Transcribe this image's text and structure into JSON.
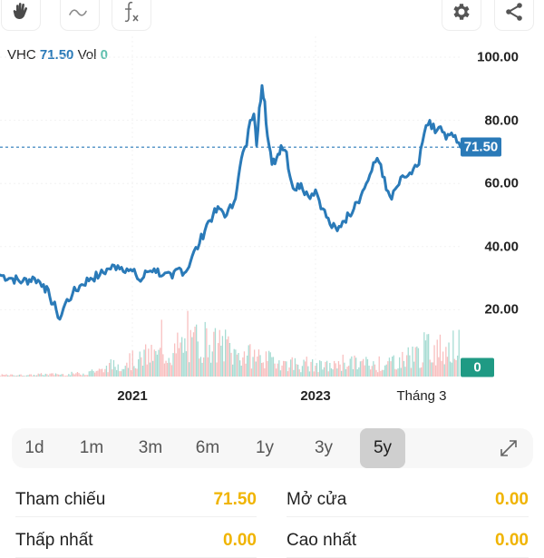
{
  "toolbar": {
    "left_tools": [
      {
        "name": "hand-icon",
        "label": "Pan"
      },
      {
        "name": "wave-icon",
        "label": "Drawing"
      },
      {
        "name": "function-icon",
        "label": "Indicators"
      }
    ],
    "right_tools": [
      {
        "name": "gear-icon",
        "label": "Settings"
      },
      {
        "name": "share-icon",
        "label": "Share"
      }
    ]
  },
  "legend": {
    "symbol": "VHC",
    "price": "71.50",
    "vol_label": "Vol",
    "vol_value": "0"
  },
  "colors": {
    "line": "#2a7ab8",
    "up_volume": "#5fbfae",
    "down_volume": "#f28b8b",
    "price_badge": "#2a7ab8",
    "vol_badge": "#1f9a84",
    "stat_value": "#f0b400"
  },
  "axis": {
    "y_labels": [
      "100.00",
      "80.00",
      "60.00",
      "40.00",
      "20.00"
    ],
    "x_labels": [
      {
        "text": "2021",
        "bold": true
      },
      {
        "text": "2023",
        "bold": true
      },
      {
        "text": "Tháng 3",
        "bold": false
      }
    ]
  },
  "badges": {
    "current_price": "71.50",
    "current_volume": "0"
  },
  "chart_data": {
    "type": "line",
    "title": "VHC",
    "xlabel": "",
    "ylabel": "",
    "ylim": [
      0,
      100
    ],
    "y_ticks": [
      20,
      40,
      60,
      80,
      100
    ],
    "x_tick_labels": [
      "2021",
      "2023",
      "Tháng 3"
    ],
    "grid": true,
    "reference_line": 71.5,
    "series": [
      {
        "name": "VHC price",
        "points": [
          [
            0,
            31
          ],
          [
            12,
            30
          ],
          [
            25,
            29
          ],
          [
            38,
            30
          ],
          [
            48,
            28
          ],
          [
            55,
            24
          ],
          [
            62,
            20
          ],
          [
            66,
            17
          ],
          [
            72,
            22
          ],
          [
            80,
            25
          ],
          [
            90,
            28
          ],
          [
            100,
            30
          ],
          [
            110,
            31
          ],
          [
            120,
            33
          ],
          [
            130,
            34
          ],
          [
            140,
            33
          ],
          [
            150,
            31
          ],
          [
            155,
            29
          ],
          [
            162,
            32
          ],
          [
            170,
            33
          ],
          [
            180,
            31
          ],
          [
            190,
            30
          ],
          [
            196,
            33
          ],
          [
            205,
            32
          ],
          [
            212,
            37
          ],
          [
            220,
            41
          ],
          [
            228,
            47
          ],
          [
            235,
            50
          ],
          [
            242,
            52
          ],
          [
            250,
            50
          ],
          [
            258,
            54
          ],
          [
            263,
            62
          ],
          [
            268,
            70
          ],
          [
            272,
            72
          ],
          [
            276,
            80
          ],
          [
            280,
            82
          ],
          [
            283,
            72
          ],
          [
            286,
            84
          ],
          [
            289,
            91
          ],
          [
            292,
            86
          ],
          [
            295,
            75
          ],
          [
            300,
            66
          ],
          [
            305,
            68
          ],
          [
            310,
            72
          ],
          [
            316,
            70
          ],
          [
            320,
            62
          ],
          [
            325,
            58
          ],
          [
            332,
            60
          ],
          [
            340,
            56
          ],
          [
            348,
            58
          ],
          [
            356,
            52
          ],
          [
            364,
            47
          ],
          [
            372,
            45
          ],
          [
            378,
            48
          ],
          [
            385,
            50
          ],
          [
            392,
            54
          ],
          [
            398,
            56
          ],
          [
            404,
            60
          ],
          [
            410,
            64
          ],
          [
            416,
            68
          ],
          [
            420,
            66
          ],
          [
            426,
            58
          ],
          [
            432,
            55
          ],
          [
            438,
            59
          ],
          [
            446,
            62
          ],
          [
            454,
            63
          ],
          [
            462,
            66
          ],
          [
            468,
            76
          ],
          [
            474,
            80
          ],
          [
            480,
            76
          ],
          [
            486,
            78
          ],
          [
            492,
            74
          ],
          [
            498,
            76
          ],
          [
            504,
            73
          ],
          [
            508,
            71.5
          ]
        ]
      }
    ],
    "volume_series": {
      "name": "Vol",
      "note": "Volume histogram with up (teal) / down (red) bars; current volume 0",
      "relative_profile": [
        2,
        2,
        3,
        3,
        4,
        8,
        15,
        22,
        28,
        32,
        40,
        50,
        42,
        30,
        28,
        22,
        18,
        15,
        14,
        20,
        18,
        15,
        22,
        30,
        38,
        40
      ]
    }
  },
  "range_selector": {
    "options": [
      "1d",
      "1m",
      "3m",
      "6m",
      "1y",
      "3y",
      "5y"
    ],
    "active": "5y",
    "expand_label": "Expand"
  },
  "stats": [
    {
      "label": "Tham chiếu",
      "value": "71.50"
    },
    {
      "label": "Mở cửa",
      "value": "0.00"
    },
    {
      "label": "Thấp nhất",
      "value": "0.00"
    },
    {
      "label": "Cao nhất",
      "value": "0.00"
    }
  ]
}
